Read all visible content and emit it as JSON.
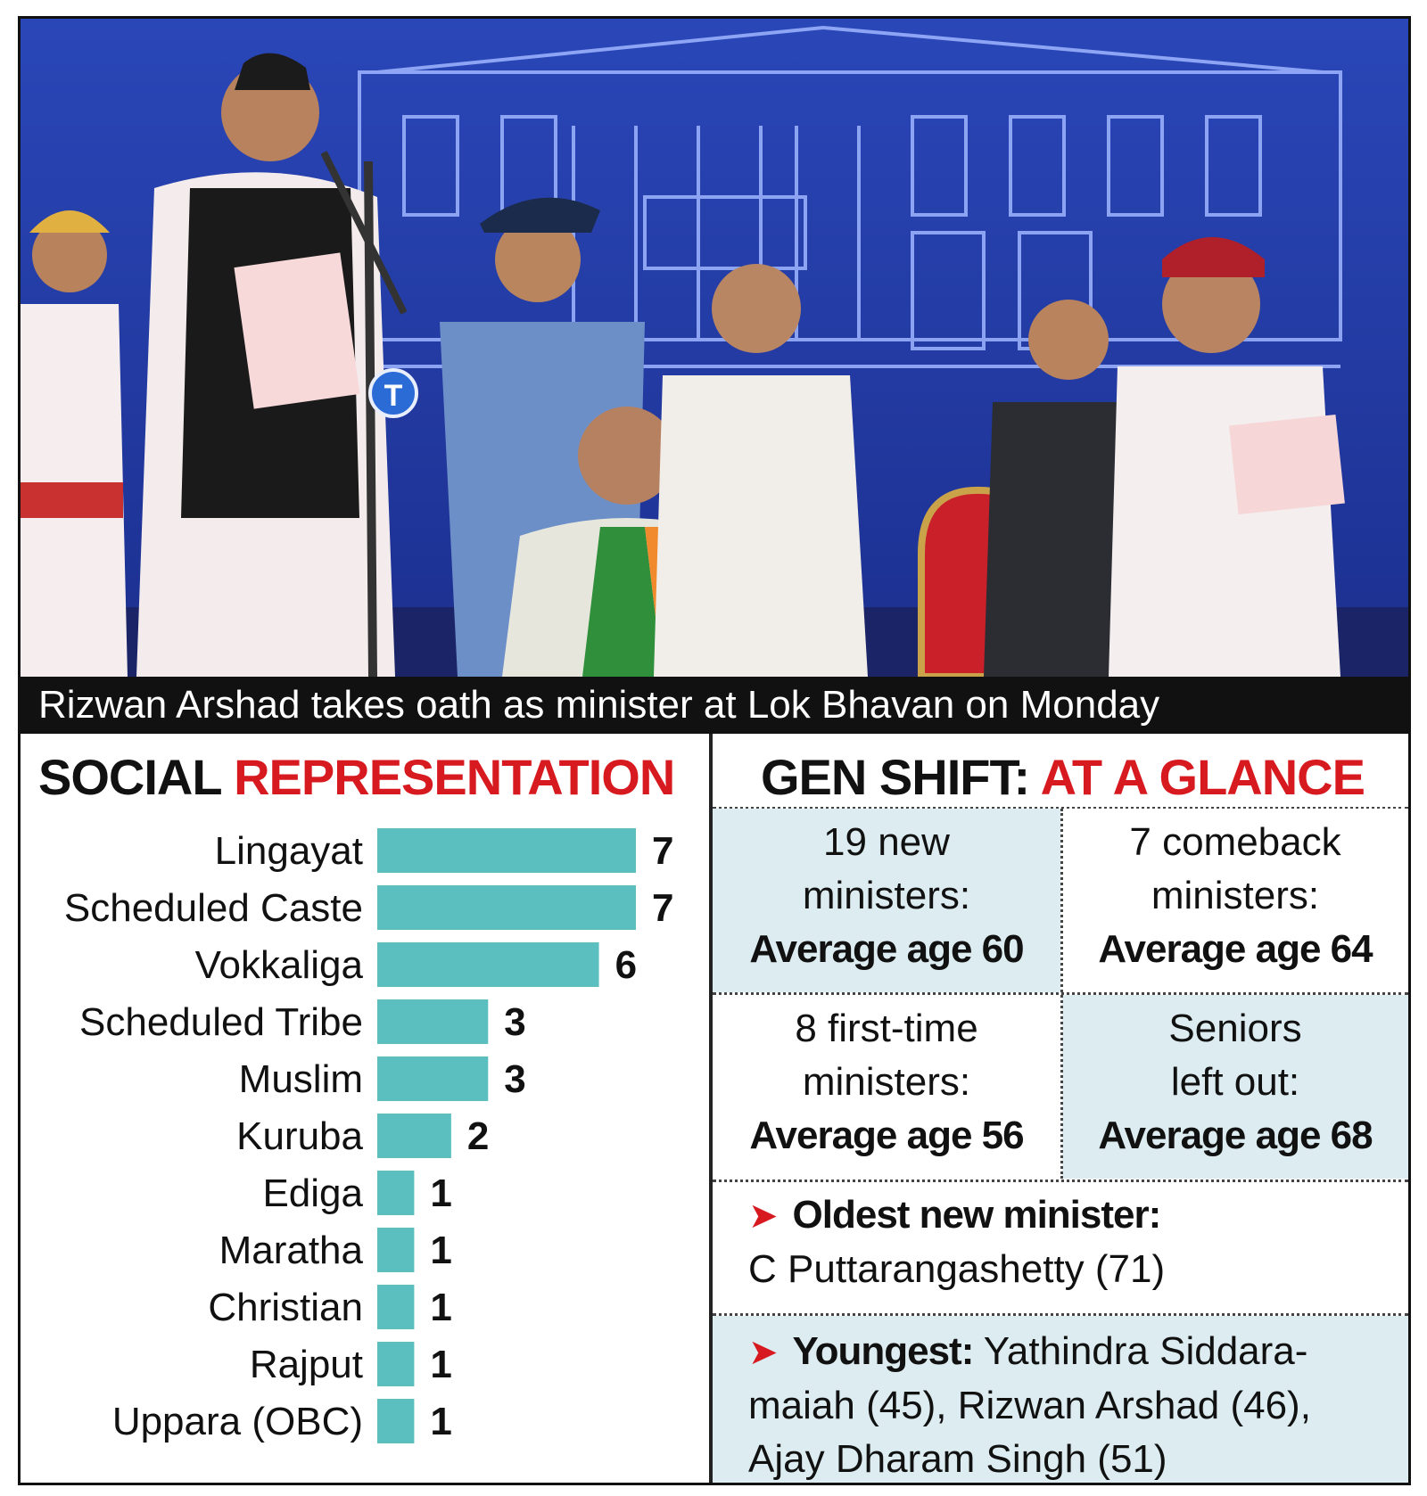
{
  "photo": {
    "caption": "Rizwan Arshad takes oath as minister at Lok Bhavan on Monday",
    "emblem_letter": "T"
  },
  "social": {
    "title_black": "SOCIAL",
    "title_red": "REPRESENTATION"
  },
  "gen_shift": {
    "title_black": "GEN SHIFT:",
    "title_red": "AT A GLANCE",
    "boxes": [
      {
        "line1": "19 new",
        "line2": "ministers:",
        "line3": "Average age 60"
      },
      {
        "line1": "7 comeback",
        "line2": "ministers:",
        "line3": "Average age 64"
      },
      {
        "line1": "8 first-time",
        "line2": "ministers:",
        "line3": "Average age 56"
      },
      {
        "line1": "Seniors",
        "line2": "left out:",
        "line3": "Average age 68"
      }
    ],
    "oldest": {
      "label": "Oldest new minister:",
      "text": "C Puttarangashetty (71)"
    },
    "youngest": {
      "label": "Youngest:",
      "text1": "Yathindra Siddara-",
      "text2": "maiah (45), Rizwan Arshad (46),",
      "text3": "Ajay Dharam Singh (51)"
    }
  },
  "colors": {
    "bar": "#5bbfc0",
    "accent": "#d71920",
    "box_fill": "#dcecf0"
  },
  "chart_data": {
    "type": "bar",
    "orientation": "horizontal",
    "title": "SOCIAL REPRESENTATION",
    "categories": [
      "Lingayat",
      "Scheduled Caste",
      "Vokkaliga",
      "Scheduled Tribe",
      "Muslim",
      "Kuruba",
      "Ediga",
      "Maratha",
      "Christian",
      "Rajput",
      "Uppara (OBC)"
    ],
    "values": [
      7,
      7,
      6,
      3,
      3,
      2,
      1,
      1,
      1,
      1,
      1
    ],
    "xlim": [
      0,
      7
    ],
    "grid": false,
    "legend": "none",
    "data_labels": true
  }
}
